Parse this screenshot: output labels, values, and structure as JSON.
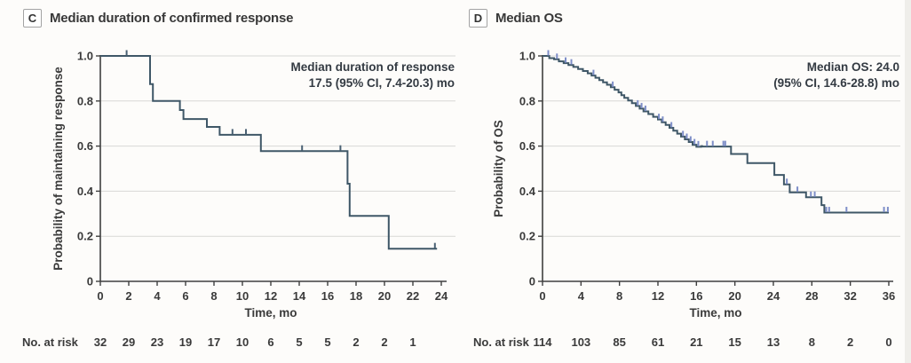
{
  "colors": {
    "curve": "#3f5767",
    "censor_dark": "#4a6173",
    "censor_blue": "#7e8ec8",
    "grid": "#d8d8d5",
    "axis": "#3f3f3f",
    "text": "#3a3a3a",
    "annotation_text": "#333a42",
    "edge_band": "#efeeea"
  },
  "chart_data": [
    {
      "type": "line",
      "subtype": "kaplan-meier-step",
      "panel_letter": "C",
      "title": "Median duration of confirmed response",
      "annotation_lines": [
        "Median duration of response",
        "17.5 (95% CI, 7.4-20.3) mo"
      ],
      "xlabel": "Time, mo",
      "ylabel": "Probability of maintaining response",
      "xlim": [
        0,
        24
      ],
      "ylim": [
        0,
        1.0
      ],
      "x_ticks": [
        0,
        2,
        4,
        6,
        8,
        10,
        12,
        14,
        16,
        18,
        20,
        22,
        24
      ],
      "y_ticks": [
        0,
        0.2,
        0.4,
        0.6,
        0.8,
        1.0
      ],
      "y_tick_labels": [
        "0",
        "0.2",
        "0.4",
        "0.6",
        "0.8",
        "1.0"
      ],
      "grid": true,
      "legend": "none",
      "series": [
        {
          "name": "Duration of confirmed response",
          "color": "#3f5767",
          "censor_color": "#4a6173",
          "steps": [
            [
              0,
              1.0
            ],
            [
              3.5,
              1.0
            ],
            [
              3.5,
              0.875
            ],
            [
              3.7,
              0.875
            ],
            [
              3.7,
              0.8
            ],
            [
              5.6,
              0.8
            ],
            [
              5.6,
              0.76
            ],
            [
              5.85,
              0.76
            ],
            [
              5.85,
              0.72
            ],
            [
              7.5,
              0.72
            ],
            [
              7.5,
              0.685
            ],
            [
              8.4,
              0.685
            ],
            [
              8.4,
              0.65
            ],
            [
              11.3,
              0.65
            ],
            [
              11.3,
              0.578
            ],
            [
              17.4,
              0.578
            ],
            [
              17.4,
              0.433
            ],
            [
              17.55,
              0.433
            ],
            [
              17.55,
              0.29
            ],
            [
              20.3,
              0.29
            ],
            [
              20.3,
              0.145
            ],
            [
              23.7,
              0.145
            ]
          ],
          "censors": [
            [
              1.85,
              1.0
            ],
            [
              9.3,
              0.65
            ],
            [
              10.25,
              0.65
            ],
            [
              14.2,
              0.578
            ],
            [
              16.9,
              0.578
            ],
            [
              23.55,
              0.145
            ]
          ]
        }
      ],
      "at_risk": {
        "label": "No. at risk",
        "times": [
          0,
          2,
          4,
          6,
          8,
          10,
          12,
          14,
          16,
          18,
          20,
          22
        ],
        "values": [
          32,
          29,
          23,
          19,
          17,
          10,
          6,
          5,
          5,
          2,
          2,
          1
        ]
      }
    },
    {
      "type": "line",
      "subtype": "kaplan-meier-step",
      "panel_letter": "D",
      "title": "Median OS",
      "annotation_lines": [
        "Median OS: 24.0",
        "(95% CI, 14.6-28.8) mo"
      ],
      "xlabel": "Time, mo",
      "ylabel": "Probability of OS",
      "xlim": [
        0,
        36
      ],
      "ylim": [
        0,
        1.0
      ],
      "x_ticks": [
        0,
        4,
        8,
        12,
        16,
        20,
        24,
        28,
        32,
        36
      ],
      "y_ticks": [
        0,
        0.2,
        0.4,
        0.6,
        0.8,
        1.0
      ],
      "y_tick_labels": [
        "0",
        "0.2",
        "0.4",
        "0.6",
        "0.8",
        "1.0"
      ],
      "grid": true,
      "legend": "none",
      "series": [
        {
          "name": "Overall survival",
          "color": "#3f5767",
          "censor_color": "#7e8ec8",
          "steps": [
            [
              0,
              1.0
            ],
            [
              0.7,
              1.0
            ],
            [
              0.7,
              0.99
            ],
            [
              1.2,
              0.99
            ],
            [
              1.2,
              0.985
            ],
            [
              1.7,
              0.985
            ],
            [
              1.7,
              0.976
            ],
            [
              2.2,
              0.976
            ],
            [
              2.2,
              0.968
            ],
            [
              2.7,
              0.968
            ],
            [
              2.7,
              0.96
            ],
            [
              3.2,
              0.96
            ],
            [
              3.2,
              0.951
            ],
            [
              3.7,
              0.951
            ],
            [
              3.7,
              0.942
            ],
            [
              4.2,
              0.942
            ],
            [
              4.2,
              0.933
            ],
            [
              4.7,
              0.933
            ],
            [
              4.7,
              0.923
            ],
            [
              5.1,
              0.923
            ],
            [
              5.1,
              0.913
            ],
            [
              5.5,
              0.913
            ],
            [
              5.5,
              0.903
            ],
            [
              5.9,
              0.903
            ],
            [
              5.9,
              0.893
            ],
            [
              6.3,
              0.893
            ],
            [
              6.3,
              0.883
            ],
            [
              6.7,
              0.883
            ],
            [
              6.7,
              0.872
            ],
            [
              7.1,
              0.872
            ],
            [
              7.1,
              0.861
            ],
            [
              7.5,
              0.861
            ],
            [
              7.5,
              0.85
            ],
            [
              7.9,
              0.85
            ],
            [
              7.9,
              0.838
            ],
            [
              8.2,
              0.838
            ],
            [
              8.2,
              0.826
            ],
            [
              8.5,
              0.826
            ],
            [
              8.5,
              0.814
            ],
            [
              8.9,
              0.814
            ],
            [
              8.9,
              0.802
            ],
            [
              9.3,
              0.802
            ],
            [
              9.3,
              0.79
            ],
            [
              9.7,
              0.79
            ],
            [
              9.7,
              0.778
            ],
            [
              10.1,
              0.778
            ],
            [
              10.1,
              0.766
            ],
            [
              10.5,
              0.766
            ],
            [
              10.5,
              0.754
            ],
            [
              11.0,
              0.754
            ],
            [
              11.0,
              0.742
            ],
            [
              11.5,
              0.742
            ],
            [
              11.5,
              0.73
            ],
            [
              12.0,
              0.73
            ],
            [
              12.0,
              0.718
            ],
            [
              12.4,
              0.718
            ],
            [
              12.4,
              0.706
            ],
            [
              12.8,
              0.706
            ],
            [
              12.8,
              0.694
            ],
            [
              13.2,
              0.694
            ],
            [
              13.2,
              0.681
            ],
            [
              13.6,
              0.681
            ],
            [
              13.6,
              0.668
            ],
            [
              14.0,
              0.668
            ],
            [
              14.0,
              0.655
            ],
            [
              14.4,
              0.655
            ],
            [
              14.4,
              0.642
            ],
            [
              14.8,
              0.642
            ],
            [
              14.8,
              0.63
            ],
            [
              15.2,
              0.63
            ],
            [
              15.2,
              0.618
            ],
            [
              15.6,
              0.618
            ],
            [
              15.6,
              0.606
            ],
            [
              16.0,
              0.606
            ],
            [
              16.0,
              0.597
            ],
            [
              16.5,
              0.597
            ],
            [
              16.5,
              0.6
            ],
            [
              16.6,
              0.6
            ],
            [
              16.6,
              0.598
            ],
            [
              19.6,
              0.598
            ],
            [
              19.6,
              0.565
            ],
            [
              21.3,
              0.565
            ],
            [
              21.3,
              0.525
            ],
            [
              24.1,
              0.525
            ],
            [
              24.1,
              0.472
            ],
            [
              25.1,
              0.472
            ],
            [
              25.1,
              0.43
            ],
            [
              25.7,
              0.43
            ],
            [
              25.7,
              0.395
            ],
            [
              27.4,
              0.395
            ],
            [
              27.4,
              0.373
            ],
            [
              29.0,
              0.373
            ],
            [
              29.0,
              0.338
            ],
            [
              29.3,
              0.338
            ],
            [
              29.3,
              0.305
            ],
            [
              36,
              0.305
            ]
          ],
          "censors": [
            [
              0.6,
              1.0
            ],
            [
              1.5,
              0.985
            ],
            [
              2.4,
              0.968
            ],
            [
              3.0,
              0.96
            ],
            [
              5.3,
              0.913
            ],
            [
              7.3,
              0.861
            ],
            [
              9.9,
              0.778
            ],
            [
              10.3,
              0.766
            ],
            [
              10.7,
              0.754
            ],
            [
              12.1,
              0.718
            ],
            [
              12.5,
              0.706
            ],
            [
              13.4,
              0.681
            ],
            [
              14.6,
              0.642
            ],
            [
              15.0,
              0.63
            ],
            [
              15.4,
              0.618
            ],
            [
              15.8,
              0.606
            ],
            [
              16.2,
              0.597
            ],
            [
              17.1,
              0.598
            ],
            [
              17.7,
              0.598
            ],
            [
              18.8,
              0.598
            ],
            [
              19.0,
              0.598
            ],
            [
              25.4,
              0.43
            ],
            [
              26.5,
              0.395
            ],
            [
              27.9,
              0.373
            ],
            [
              28.3,
              0.373
            ],
            [
              29.5,
              0.305
            ],
            [
              29.8,
              0.305
            ],
            [
              31.6,
              0.305
            ],
            [
              35.5,
              0.305
            ],
            [
              35.9,
              0.305
            ]
          ],
          "median_label": "Median OS: 24.0 (95% CI, 14.6-28.8) mo"
        }
      ],
      "at_risk": {
        "label": "No. at risk",
        "times": [
          0,
          4,
          8,
          12,
          16,
          20,
          24,
          28,
          32,
          36
        ],
        "values": [
          114,
          103,
          85,
          61,
          21,
          15,
          13,
          8,
          2,
          0
        ]
      }
    }
  ]
}
